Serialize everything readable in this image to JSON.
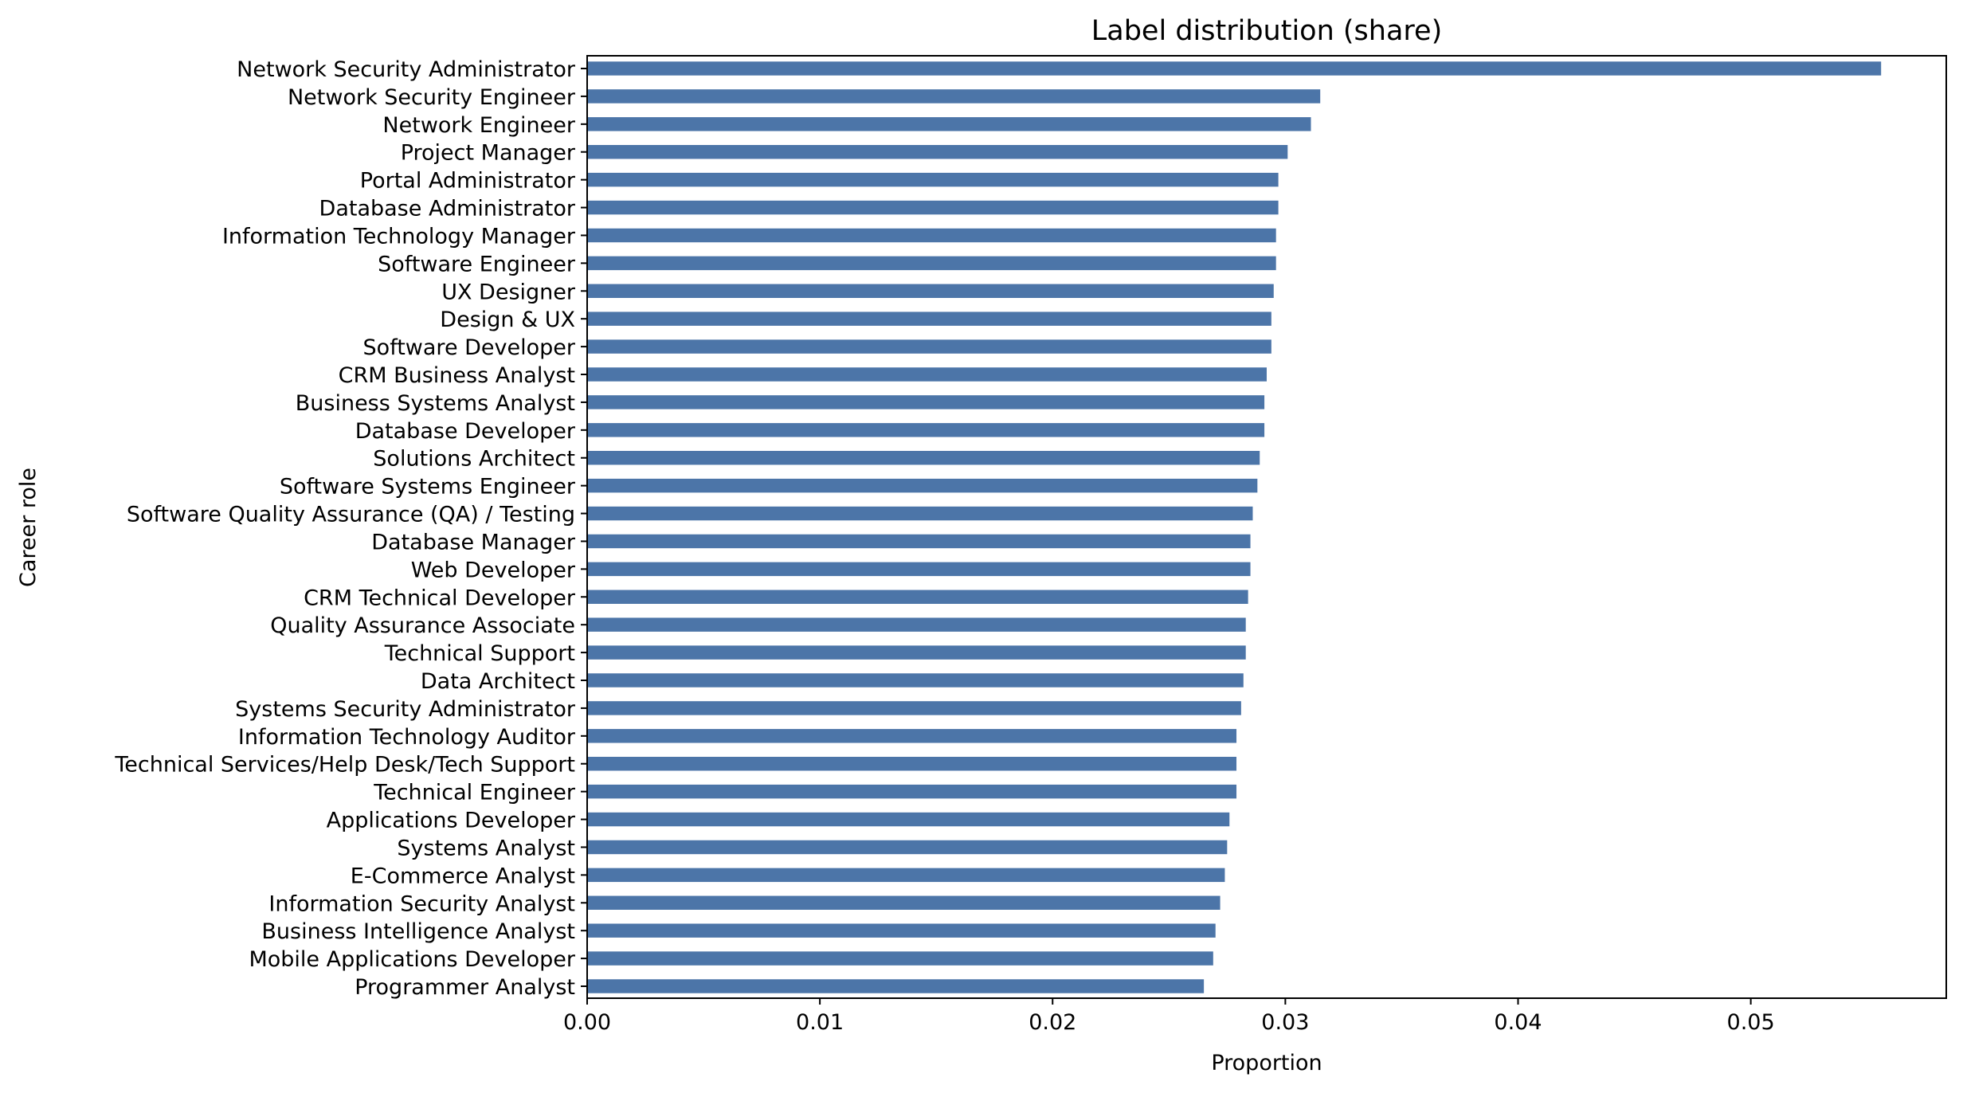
{
  "chart_data": {
    "type": "bar",
    "orientation": "horizontal",
    "title": "Label distribution (share)",
    "xlabel": "Proportion",
    "ylabel": "Career role",
    "xlim": [
      0,
      0.0584
    ],
    "xticks": [
      "0.00",
      "0.01",
      "0.02",
      "0.03",
      "0.04",
      "0.05"
    ],
    "grid": false,
    "legend": "none",
    "bar_color": "#4c75a8",
    "categories": [
      "Network Security Administrator",
      "Network Security Engineer",
      "Network Engineer",
      "Project Manager",
      "Portal Administrator",
      "Database Administrator",
      "Information Technology Manager",
      "Software Engineer",
      "UX Designer",
      "Design & UX",
      "Software Developer",
      "CRM Business Analyst",
      "Business Systems Analyst",
      "Database Developer",
      "Solutions Architect",
      "Software Systems Engineer",
      "Software Quality Assurance (QA) / Testing",
      "Database Manager",
      "Web Developer",
      "CRM Technical Developer",
      "Quality Assurance Associate",
      "Technical Support",
      "Data Architect",
      "Systems Security Administrator",
      "Information Technology Auditor",
      "Technical Services/Help Desk/Tech Support",
      "Technical Engineer",
      "Applications Developer",
      "Systems Analyst",
      "E-Commerce Analyst",
      "Information Security Analyst",
      "Business Intelligence Analyst",
      "Mobile Applications Developer",
      "Programmer Analyst"
    ],
    "values": [
      0.0556,
      0.0315,
      0.0311,
      0.0301,
      0.0297,
      0.0297,
      0.0296,
      0.0296,
      0.0295,
      0.0294,
      0.0294,
      0.0292,
      0.0291,
      0.0291,
      0.0289,
      0.0288,
      0.0286,
      0.0285,
      0.0285,
      0.0284,
      0.0283,
      0.0283,
      0.0282,
      0.0281,
      0.0279,
      0.0279,
      0.0279,
      0.0276,
      0.0275,
      0.0274,
      0.0272,
      0.027,
      0.0269,
      0.0265
    ]
  }
}
